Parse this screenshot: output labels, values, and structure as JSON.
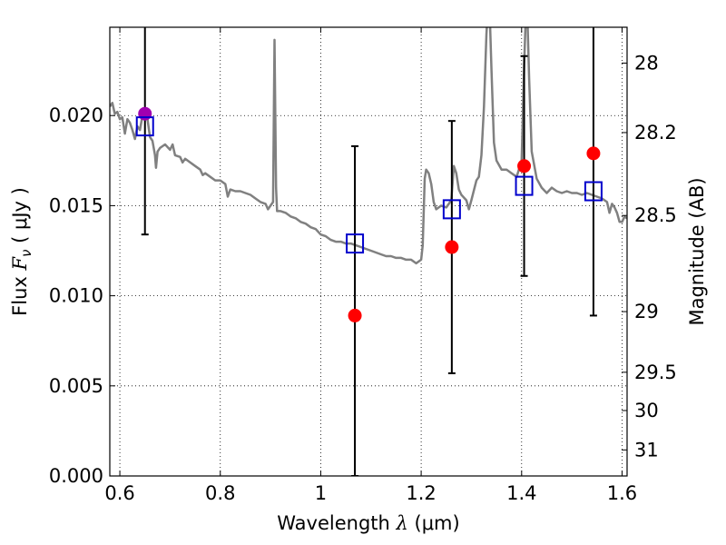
{
  "chart_data": {
    "type": "scatter",
    "xlabel": "Wavelength  λ (μm)",
    "ylabel": "Flux  F_ν  ( μJy )",
    "ylabel_right": "Magnitude (AB)",
    "xlim": [
      0.58,
      1.61
    ],
    "ylim": [
      0,
      0.0249
    ],
    "grid": true,
    "x_ticks": [
      {
        "value": 0.6,
        "label": "0.6"
      },
      {
        "value": 0.8,
        "label": "0.8"
      },
      {
        "value": 1.0,
        "label": "1"
      },
      {
        "value": 1.2,
        "label": "1.2"
      },
      {
        "value": 1.4,
        "label": "1.4"
      },
      {
        "value": 1.6,
        "label": "1.6"
      }
    ],
    "y_ticks": [
      {
        "value": 0.0,
        "label": "0.000"
      },
      {
        "value": 0.005,
        "label": "0.005"
      },
      {
        "value": 0.01,
        "label": "0.010"
      },
      {
        "value": 0.015,
        "label": "0.015"
      },
      {
        "value": 0.02,
        "label": "0.020"
      }
    ],
    "right_ticks": [
      {
        "mag": 28,
        "label": "28"
      },
      {
        "mag": 28.2,
        "label": "28.2"
      },
      {
        "mag": 28.5,
        "label": "28.5"
      },
      {
        "mag": 29,
        "label": "29"
      },
      {
        "mag": 29.5,
        "label": "29.5"
      },
      {
        "mag": 30,
        "label": "30"
      },
      {
        "mag": 31,
        "label": "31"
      }
    ],
    "series": [
      {
        "kind": "line",
        "color": "#808080",
        "points": [
          [
            0.58,
            0.0205
          ],
          [
            0.585,
            0.0207
          ],
          [
            0.59,
            0.0201
          ],
          [
            0.595,
            0.0202
          ],
          [
            0.6,
            0.0198
          ],
          [
            0.605,
            0.0199
          ],
          [
            0.61,
            0.019
          ],
          [
            0.615,
            0.0198
          ],
          [
            0.62,
            0.0196
          ],
          [
            0.625,
            0.0192
          ],
          [
            0.63,
            0.0187
          ],
          [
            0.635,
            0.0194
          ],
          [
            0.64,
            0.0192
          ],
          [
            0.645,
            0.02
          ],
          [
            0.65,
            0.0203
          ],
          [
            0.655,
            0.0198
          ],
          [
            0.66,
            0.0188
          ],
          [
            0.665,
            0.0186
          ],
          [
            0.67,
            0.0178
          ],
          [
            0.672,
            0.0171
          ],
          [
            0.675,
            0.018
          ],
          [
            0.68,
            0.0182
          ],
          [
            0.69,
            0.0184
          ],
          [
            0.7,
            0.0181
          ],
          [
            0.705,
            0.0184
          ],
          [
            0.71,
            0.0178
          ],
          [
            0.72,
            0.0177
          ],
          [
            0.725,
            0.0174
          ],
          [
            0.73,
            0.0176
          ],
          [
            0.74,
            0.0174
          ],
          [
            0.75,
            0.0172
          ],
          [
            0.76,
            0.017
          ],
          [
            0.765,
            0.0167
          ],
          [
            0.77,
            0.0168
          ],
          [
            0.78,
            0.0166
          ],
          [
            0.79,
            0.0164
          ],
          [
            0.8,
            0.0164
          ],
          [
            0.81,
            0.0162
          ],
          [
            0.815,
            0.0155
          ],
          [
            0.82,
            0.0159
          ],
          [
            0.83,
            0.0158
          ],
          [
            0.84,
            0.0158
          ],
          [
            0.85,
            0.0157
          ],
          [
            0.86,
            0.0156
          ],
          [
            0.87,
            0.0154
          ],
          [
            0.88,
            0.0152
          ],
          [
            0.89,
            0.0151
          ],
          [
            0.895,
            0.0148
          ],
          [
            0.9,
            0.015
          ],
          [
            0.905,
            0.0152
          ],
          [
            0.908,
            0.0242
          ],
          [
            0.911,
            0.016
          ],
          [
            0.913,
            0.0147
          ],
          [
            0.92,
            0.0147
          ],
          [
            0.93,
            0.0146
          ],
          [
            0.94,
            0.0144
          ],
          [
            0.95,
            0.0143
          ],
          [
            0.96,
            0.0141
          ],
          [
            0.97,
            0.014
          ],
          [
            0.98,
            0.0138
          ],
          [
            0.99,
            0.0137
          ],
          [
            1.0,
            0.0134
          ],
          [
            1.01,
            0.0133
          ],
          [
            1.02,
            0.0131
          ],
          [
            1.03,
            0.013
          ],
          [
            1.04,
            0.013
          ],
          [
            1.05,
            0.0129
          ],
          [
            1.06,
            0.0129
          ],
          [
            1.07,
            0.0128
          ],
          [
            1.08,
            0.0127
          ],
          [
            1.09,
            0.0126
          ],
          [
            1.1,
            0.0125
          ],
          [
            1.11,
            0.0124
          ],
          [
            1.12,
            0.0123
          ],
          [
            1.13,
            0.0122
          ],
          [
            1.14,
            0.0122
          ],
          [
            1.15,
            0.0121
          ],
          [
            1.16,
            0.0121
          ],
          [
            1.17,
            0.012
          ],
          [
            1.18,
            0.012
          ],
          [
            1.19,
            0.0118
          ],
          [
            1.2,
            0.012
          ],
          [
            1.203,
            0.0128
          ],
          [
            1.207,
            0.0165
          ],
          [
            1.21,
            0.017
          ],
          [
            1.215,
            0.0168
          ],
          [
            1.22,
            0.0162
          ],
          [
            1.225,
            0.0152
          ],
          [
            1.23,
            0.0148
          ],
          [
            1.24,
            0.015
          ],
          [
            1.25,
            0.0149
          ],
          [
            1.26,
            0.0153
          ],
          [
            1.265,
            0.0172
          ],
          [
            1.27,
            0.0168
          ],
          [
            1.275,
            0.0159
          ],
          [
            1.28,
            0.0156
          ],
          [
            1.29,
            0.0153
          ],
          [
            1.295,
            0.0148
          ],
          [
            1.3,
            0.0153
          ],
          [
            1.31,
            0.0164
          ],
          [
            1.315,
            0.0166
          ],
          [
            1.32,
            0.0178
          ],
          [
            1.325,
            0.0205
          ],
          [
            1.33,
            0.0245
          ],
          [
            1.335,
            0.027
          ],
          [
            1.34,
            0.0225
          ],
          [
            1.345,
            0.0185
          ],
          [
            1.35,
            0.0175
          ],
          [
            1.36,
            0.017
          ],
          [
            1.37,
            0.017
          ],
          [
            1.38,
            0.0168
          ],
          [
            1.39,
            0.0166
          ],
          [
            1.4,
            0.0175
          ],
          [
            1.405,
            0.0228
          ],
          [
            1.41,
            0.027
          ],
          [
            1.415,
            0.022
          ],
          [
            1.42,
            0.018
          ],
          [
            1.43,
            0.0165
          ],
          [
            1.44,
            0.016
          ],
          [
            1.45,
            0.0157
          ],
          [
            1.46,
            0.016
          ],
          [
            1.47,
            0.0158
          ],
          [
            1.48,
            0.0157
          ],
          [
            1.49,
            0.0158
          ],
          [
            1.5,
            0.0157
          ],
          [
            1.51,
            0.0157
          ],
          [
            1.52,
            0.0156
          ],
          [
            1.53,
            0.0157
          ],
          [
            1.54,
            0.0156
          ],
          [
            1.55,
            0.0155
          ],
          [
            1.56,
            0.0154
          ],
          [
            1.57,
            0.0152
          ],
          [
            1.575,
            0.0146
          ],
          [
            1.58,
            0.0151
          ],
          [
            1.585,
            0.0149
          ],
          [
            1.59,
            0.0146
          ],
          [
            1.595,
            0.0141
          ],
          [
            1.6,
            0.0141
          ],
          [
            1.605,
            0.0144
          ],
          [
            1.61,
            0.0143
          ]
        ]
      },
      {
        "kind": "points",
        "marker": "circle",
        "color": "#ff0000",
        "points": [
          {
            "x": 1.068,
            "y": 0.0089,
            "err_low": 0.0,
            "err_high": 0.0183
          },
          {
            "x": 1.261,
            "y": 0.0127,
            "err_low": 0.0057,
            "err_high": 0.0197
          },
          {
            "x": 1.405,
            "y": 0.0172,
            "err_low": 0.0111,
            "err_high": 0.0233
          },
          {
            "x": 1.543,
            "y": 0.0179,
            "err_low": 0.0089,
            "err_high": 0.026
          }
        ]
      },
      {
        "kind": "points",
        "marker": "circle",
        "color": "#a000b0",
        "points": [
          {
            "x": 0.65,
            "y": 0.0201,
            "err_low": 0.0134,
            "err_high": 0.026
          }
        ]
      },
      {
        "kind": "points",
        "marker": "square",
        "color": "#0000cc",
        "points": [
          {
            "x": 0.65,
            "y": 0.0194
          },
          {
            "x": 1.068,
            "y": 0.0129
          },
          {
            "x": 1.261,
            "y": 0.0148
          },
          {
            "x": 1.405,
            "y": 0.0161
          },
          {
            "x": 1.543,
            "y": 0.0158
          }
        ]
      }
    ]
  }
}
